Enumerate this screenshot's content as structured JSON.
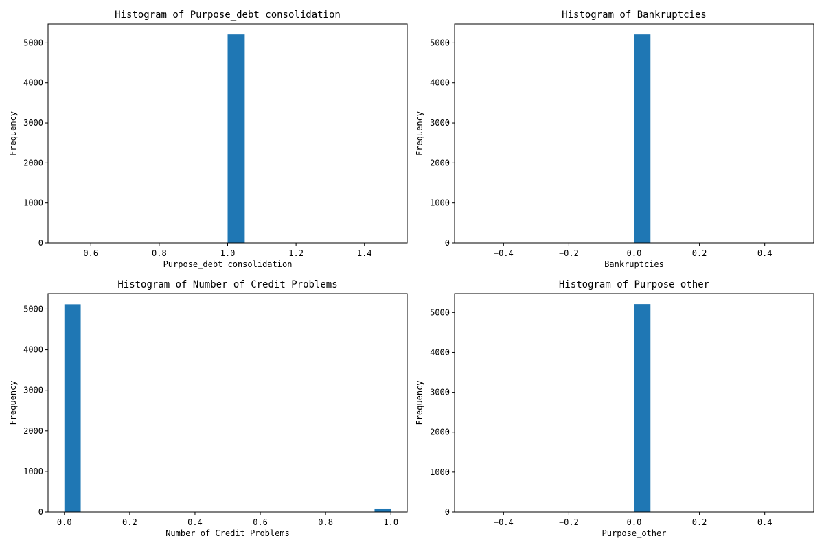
{
  "chart_data": [
    {
      "type": "bar",
      "title": "Histogram of Purpose_debt consolidation",
      "xlabel": "Purpose_debt consolidation",
      "ylabel": "Frequency",
      "xlim": [
        0.475,
        1.525
      ],
      "ylim": [
        0,
        5470
      ],
      "xticks": [
        0.6,
        0.8,
        1.0,
        1.2,
        1.4
      ],
      "xtick_labels": [
        "0.6",
        "0.8",
        "1.0",
        "1.2",
        "1.4"
      ],
      "yticks": [
        0,
        1000,
        2000,
        3000,
        4000,
        5000
      ],
      "ytick_labels": [
        "0",
        "1000",
        "2000",
        "3000",
        "4000",
        "5000"
      ],
      "bins": [
        {
          "x0": 1.0,
          "x1": 1.05,
          "count": 5210
        }
      ],
      "grid": false
    },
    {
      "type": "bar",
      "title": "Histogram of Bankruptcies",
      "xlabel": "Bankruptcies",
      "ylabel": "Frequency",
      "xlim": [
        -0.55,
        0.55
      ],
      "ylim": [
        0,
        5470
      ],
      "xticks": [
        -0.4,
        -0.2,
        0.0,
        0.2,
        0.4
      ],
      "xtick_labels": [
        "−0.4",
        "−0.2",
        "0.0",
        "0.2",
        "0.4"
      ],
      "yticks": [
        0,
        1000,
        2000,
        3000,
        4000,
        5000
      ],
      "ytick_labels": [
        "0",
        "1000",
        "2000",
        "3000",
        "4000",
        "5000"
      ],
      "bins": [
        {
          "x0": 0.0,
          "x1": 0.05,
          "count": 5210
        }
      ],
      "grid": false
    },
    {
      "type": "bar",
      "title": "Histogram of Number of Credit Problems",
      "xlabel": "Number of Credit Problems",
      "ylabel": "Frequency",
      "xlim": [
        -0.05,
        1.05
      ],
      "ylim": [
        0,
        5380
      ],
      "xticks": [
        0.0,
        0.2,
        0.4,
        0.6,
        0.8,
        1.0
      ],
      "xtick_labels": [
        "0.0",
        "0.2",
        "0.4",
        "0.6",
        "0.8",
        "1.0"
      ],
      "yticks": [
        0,
        1000,
        2000,
        3000,
        4000,
        5000
      ],
      "ytick_labels": [
        "0",
        "1000",
        "2000",
        "3000",
        "4000",
        "5000"
      ],
      "bins": [
        {
          "x0": 0.0,
          "x1": 0.05,
          "count": 5120
        },
        {
          "x0": 0.95,
          "x1": 1.0,
          "count": 85
        }
      ],
      "grid": false
    },
    {
      "type": "bar",
      "title": "Histogram of Purpose_other",
      "xlabel": "Purpose_other",
      "ylabel": "Frequency",
      "xlim": [
        -0.55,
        0.55
      ],
      "ylim": [
        0,
        5470
      ],
      "xticks": [
        -0.4,
        -0.2,
        0.0,
        0.2,
        0.4
      ],
      "xtick_labels": [
        "−0.4",
        "−0.2",
        "0.0",
        "0.2",
        "0.4"
      ],
      "yticks": [
        0,
        1000,
        2000,
        3000,
        4000,
        5000
      ],
      "ytick_labels": [
        "0",
        "1000",
        "2000",
        "3000",
        "4000",
        "5000"
      ],
      "bins": [
        {
          "x0": 0.0,
          "x1": 0.05,
          "count": 5210
        }
      ],
      "grid": false
    }
  ],
  "colors": {
    "bar": "#1f77b4",
    "axes": "#000000",
    "background": "#ffffff"
  }
}
